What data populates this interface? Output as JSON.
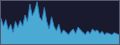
{
  "chart_data": {
    "type": "area",
    "values": [
      55,
      38,
      52,
      30,
      42,
      25,
      48,
      35,
      50,
      38,
      62,
      48,
      85,
      60,
      72,
      90,
      58,
      50,
      78,
      48,
      32,
      58,
      38,
      28,
      42,
      22,
      30,
      25,
      20,
      27,
      32,
      22,
      36,
      30,
      24,
      20,
      28,
      22,
      32,
      27,
      30,
      22,
      27,
      20,
      24,
      22,
      20,
      24,
      22,
      20
    ],
    "color": "#4baad4",
    "xlim": [
      0,
      49
    ],
    "ylim": [
      0,
      91.8
    ],
    "grid": false,
    "tick_labels": false
  }
}
